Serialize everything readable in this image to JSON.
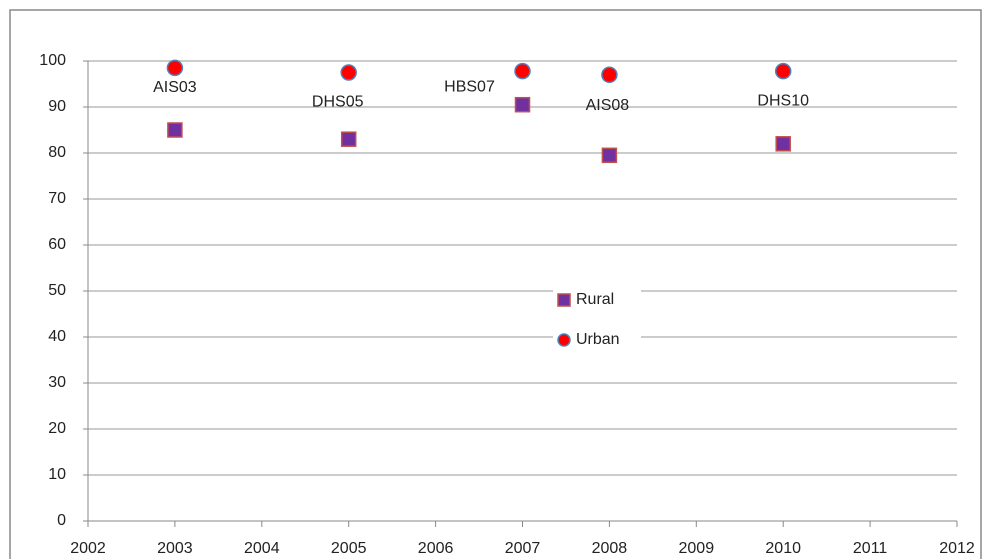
{
  "chart_data": {
    "type": "scatter",
    "x": [
      2003,
      2005,
      2007,
      2008,
      2010
    ],
    "annotations": [
      "AIS03",
      "DHS05",
      "HBS07",
      "AIS08",
      "DHS10"
    ],
    "series": [
      {
        "name": "Rural",
        "color": "#7030a0",
        "edge": "#c0504d",
        "marker": "square",
        "values": [
          85,
          83,
          90.5,
          79.5,
          82
        ]
      },
      {
        "name": "Urban",
        "color": "#ff0000",
        "edge": "#4f81bd",
        "marker": "circle",
        "values": [
          98.5,
          97.5,
          97.8,
          97,
          97.8
        ]
      }
    ],
    "xlim": [
      2002,
      2012
    ],
    "xticks": [
      2002,
      2003,
      2004,
      2005,
      2006,
      2007,
      2008,
      2009,
      2010,
      2011,
      2012
    ],
    "ylim": [
      0,
      100
    ],
    "yticks": [
      0,
      10,
      20,
      30,
      40,
      50,
      60,
      70,
      80,
      90,
      100
    ],
    "grid": true,
    "legend": "center"
  }
}
